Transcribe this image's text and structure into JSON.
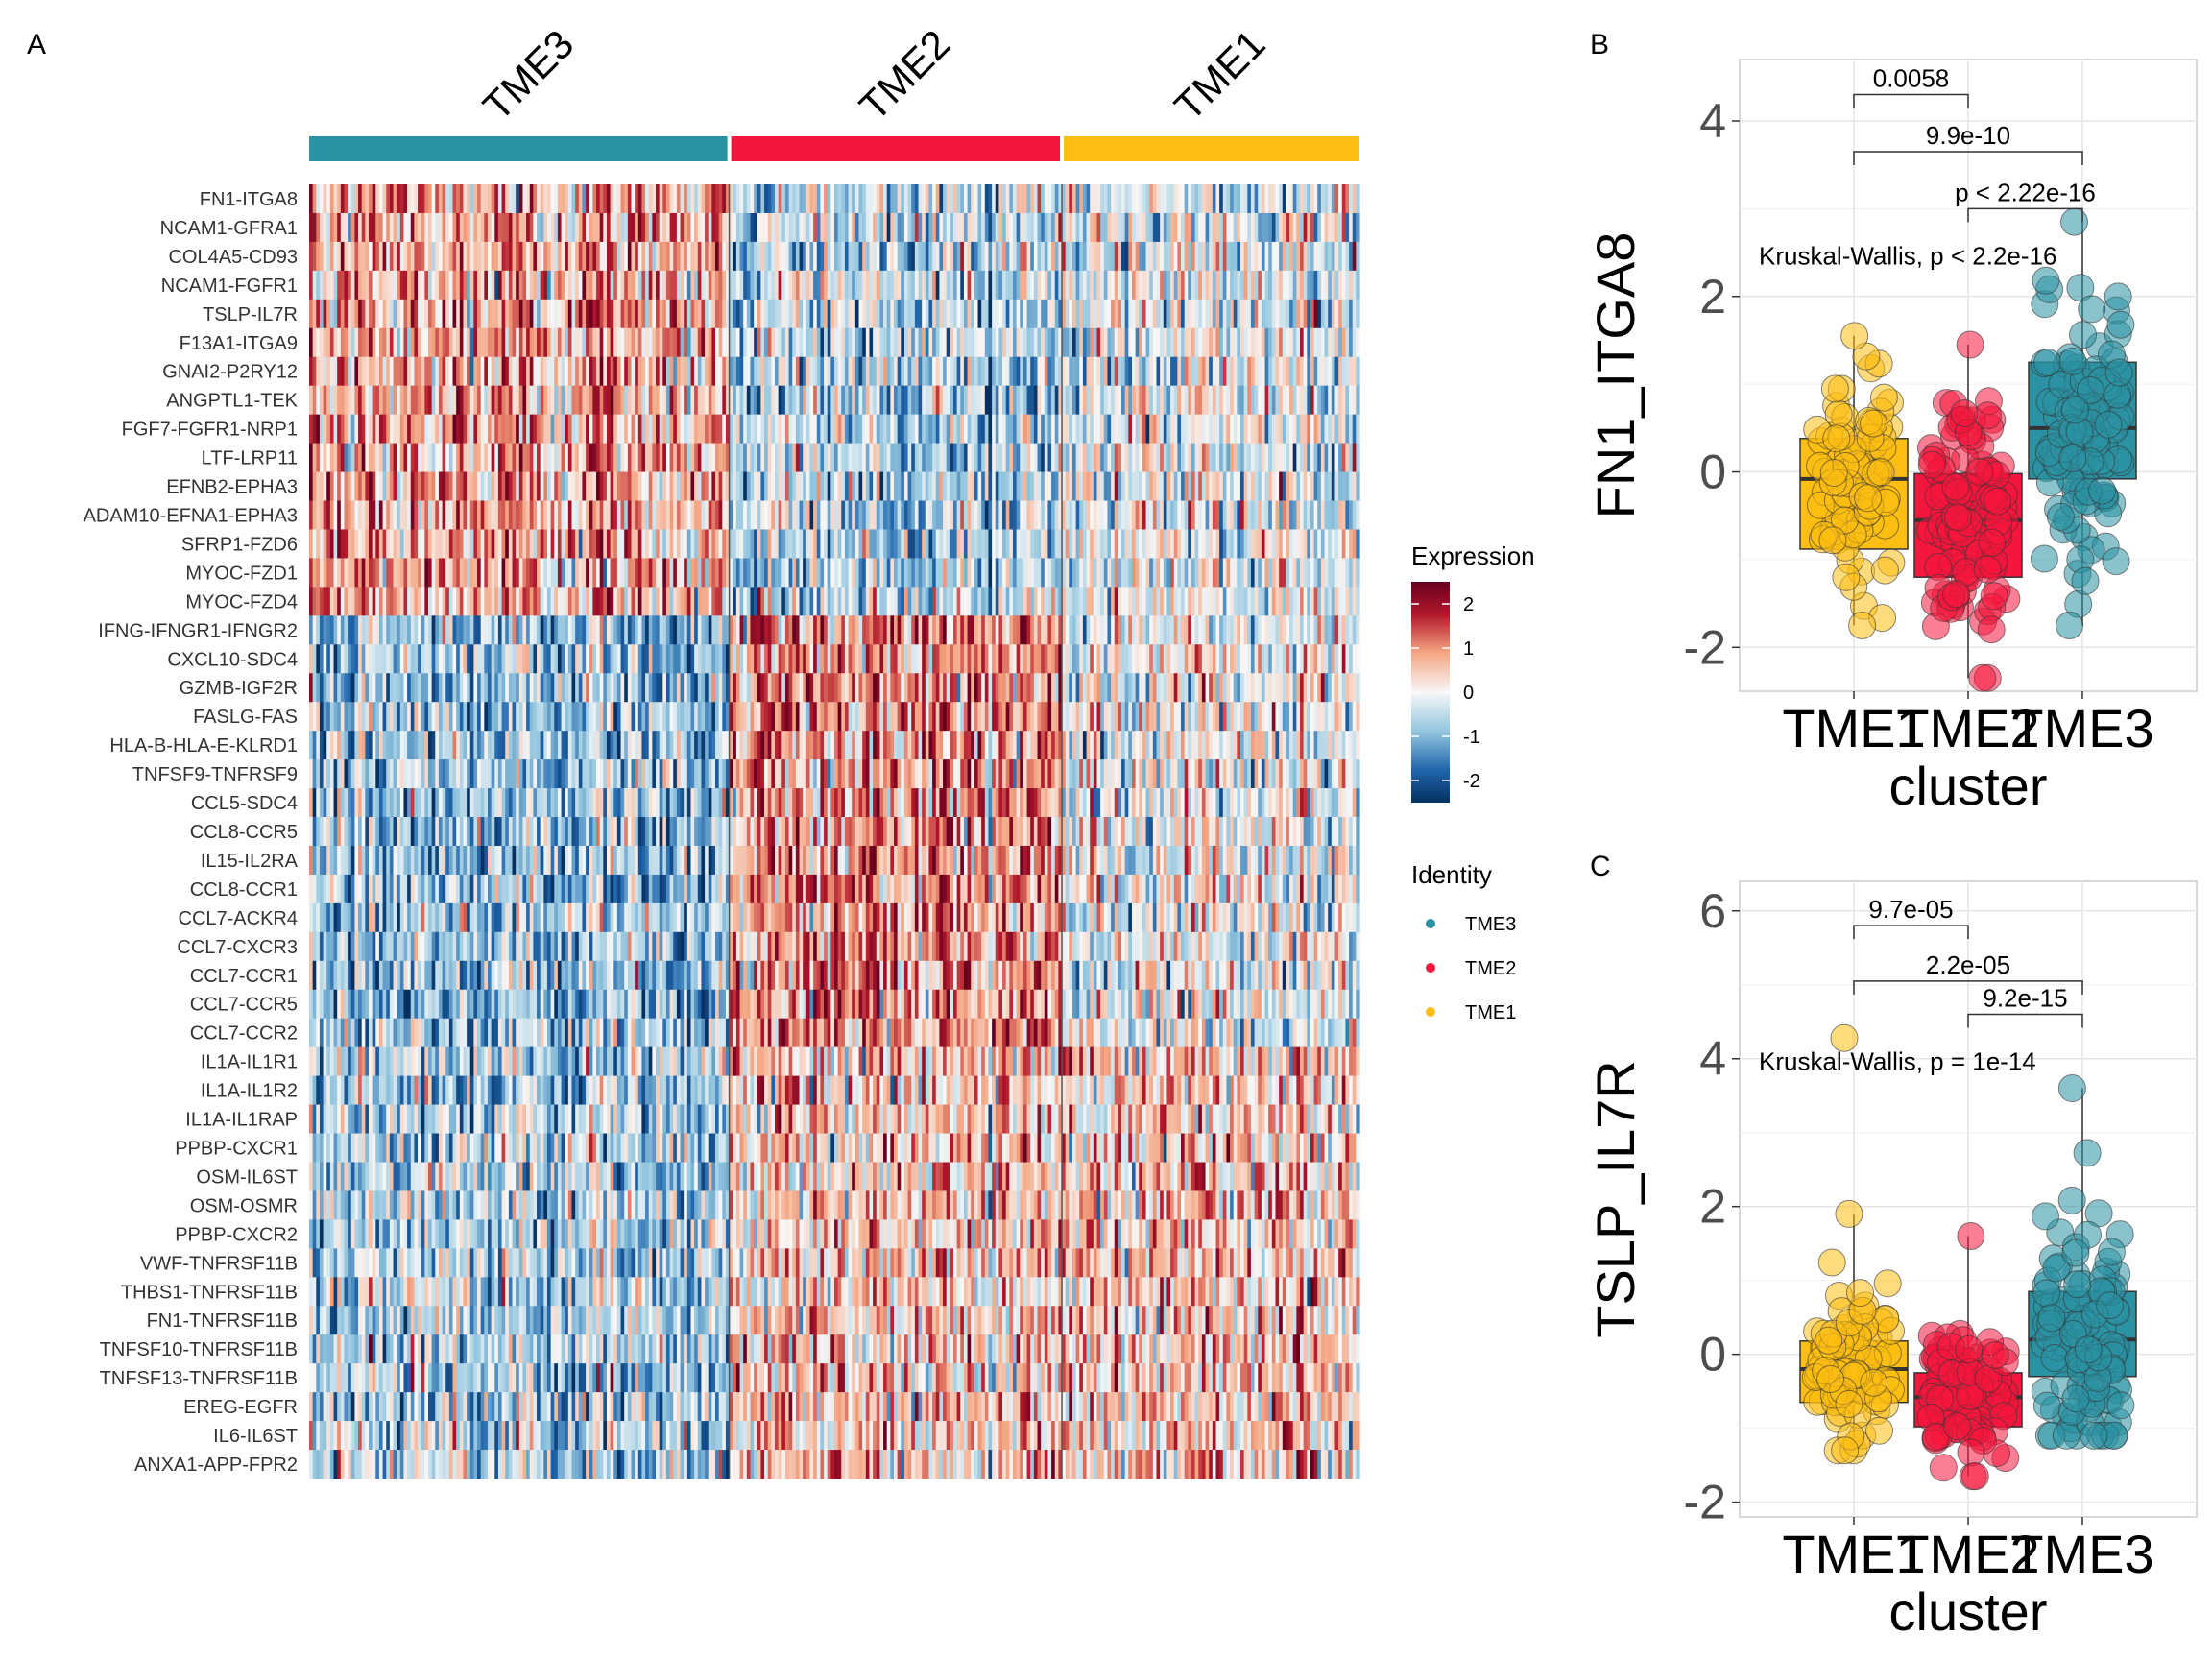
{
  "panels": {
    "a": "A",
    "b": "B",
    "c": "C"
  },
  "colors": {
    "TME3": "#2A92A2",
    "TME2": "#F5163D",
    "TME1": "#FDBE13",
    "heat_low": "#053061",
    "heat_mid": "#F7F7F7",
    "heat_high": "#67001F"
  },
  "chart_data": [
    {
      "type": "heatmap",
      "panel": "A",
      "columns": [
        {
          "name": "TME3",
          "cells": 120
        },
        {
          "name": "TME2",
          "cells": 95
        },
        {
          "name": "TME1",
          "cells": 85
        }
      ],
      "rows": [
        {
          "name": "FN1-ITGA8",
          "group": 1
        },
        {
          "name": "NCAM1-GFRA1",
          "group": 1
        },
        {
          "name": "COL4A5-CD93",
          "group": 1
        },
        {
          "name": "NCAM1-FGFR1",
          "group": 1
        },
        {
          "name": "TSLP-IL7R",
          "group": 1
        },
        {
          "name": "F13A1-ITGA9",
          "group": 1
        },
        {
          "name": "GNAI2-P2RY12",
          "group": 1
        },
        {
          "name": "ANGPTL1-TEK",
          "group": 1
        },
        {
          "name": "FGF7-FGFR1-NRP1",
          "group": 1
        },
        {
          "name": "LTF-LRP11",
          "group": 1
        },
        {
          "name": "EFNB2-EPHA3",
          "group": 1
        },
        {
          "name": "ADAM10-EFNA1-EPHA3",
          "group": 1
        },
        {
          "name": "SFRP1-FZD6",
          "group": 1
        },
        {
          "name": "MYOC-FZD1",
          "group": 1
        },
        {
          "name": "MYOC-FZD4",
          "group": 1
        },
        {
          "name": "IFNG-IFNGR1-IFNGR2",
          "group": 2
        },
        {
          "name": "CXCL10-SDC4",
          "group": 2
        },
        {
          "name": "GZMB-IGF2R",
          "group": 2
        },
        {
          "name": "FASLG-FAS",
          "group": 2
        },
        {
          "name": "HLA-B-HLA-E-KLRD1",
          "group": 2
        },
        {
          "name": "TNFSF9-TNFRSF9",
          "group": 2
        },
        {
          "name": "CCL5-SDC4",
          "group": 2
        },
        {
          "name": "CCL8-CCR5",
          "group": 2
        },
        {
          "name": "IL15-IL2RA",
          "group": 2
        },
        {
          "name": "CCL8-CCR1",
          "group": 2
        },
        {
          "name": "CCL7-ACKR4",
          "group": 2
        },
        {
          "name": "CCL7-CXCR3",
          "group": 2
        },
        {
          "name": "CCL7-CCR1",
          "group": 2
        },
        {
          "name": "CCL7-CCR5",
          "group": 2
        },
        {
          "name": "CCL7-CCR2",
          "group": 2
        },
        {
          "name": "IL1A-IL1R1",
          "group": 3
        },
        {
          "name": "IL1A-IL1R2",
          "group": 3
        },
        {
          "name": "IL1A-IL1RAP",
          "group": 3
        },
        {
          "name": "PPBP-CXCR1",
          "group": 3
        },
        {
          "name": "OSM-IL6ST",
          "group": 3
        },
        {
          "name": "OSM-OSMR",
          "group": 3
        },
        {
          "name": "PPBP-CXCR2",
          "group": 3
        },
        {
          "name": "VWF-TNFRSF11B",
          "group": 3
        },
        {
          "name": "THBS1-TNFRSF11B",
          "group": 3
        },
        {
          "name": "FN1-TNFRSF11B",
          "group": 3
        },
        {
          "name": "TNFSF10-TNFRSF11B",
          "group": 3
        },
        {
          "name": "TNFSF13-TNFRSF11B",
          "group": 3
        },
        {
          "name": "EREG-EGFR",
          "group": 3
        },
        {
          "name": "IL6-IL6ST",
          "group": 3
        },
        {
          "name": "ANXA1-APP-FPR2",
          "group": 3
        }
      ],
      "group_means": {
        "1": {
          "TME3": 0.8,
          "TME2": -0.55,
          "TME1": -0.2
        },
        "2": {
          "TME3": -0.8,
          "TME2": 0.95,
          "TME1": -0.1
        },
        "3": {
          "TME3": -0.6,
          "TME2": 0.45,
          "TME1": 0.5
        }
      },
      "legend_expression": {
        "title": "Expression",
        "ticks": [
          "2",
          "1",
          "0",
          "-1",
          "-2"
        ],
        "range": [
          -2.5,
          2.5
        ]
      },
      "legend_identity": {
        "title": "Identity",
        "items": [
          "TME3",
          "TME2",
          "TME1"
        ]
      }
    },
    {
      "type": "box",
      "panel": "B",
      "ylabel": "FN1_ITGA8",
      "xlabel": "cluster",
      "categories": [
        "TME1",
        "TME2",
        "TME3"
      ],
      "ylim": [
        -2.5,
        4.7
      ],
      "yticks": [
        -2,
        0,
        2,
        4
      ],
      "boxes": [
        {
          "group": "TME1",
          "q1": -0.88,
          "median": -0.08,
          "q3": 0.38,
          "whisker_low": -1.75,
          "whisker_high": 1.55,
          "n": 90,
          "sd": 0.6
        },
        {
          "group": "TME2",
          "q1": -1.2,
          "median": -0.55,
          "q3": -0.02,
          "whisker_low": -2.35,
          "whisker_high": 1.45,
          "n": 110,
          "sd": 0.6
        },
        {
          "group": "TME3",
          "q1": -0.08,
          "median": 0.5,
          "q3": 1.25,
          "whisker_low": -1.75,
          "whisker_high": 2.85,
          "n": 120,
          "sd": 0.8
        }
      ],
      "comparisons": [
        {
          "from": "TME1",
          "to": "TME2",
          "label": "0.0058",
          "y": 4.3
        },
        {
          "from": "TME1",
          "to": "TME3",
          "label": "9.9e-10",
          "y": 3.65
        },
        {
          "from": "TME2",
          "to": "TME3",
          "label": "p < 2.22e-16",
          "y": 3.0
        }
      ],
      "kruskal": "Kruskal-Wallis, p < 2.2e-16"
    },
    {
      "type": "box",
      "panel": "C",
      "ylabel": "TSLP_IL7R",
      "xlabel": "cluster",
      "categories": [
        "TME1",
        "TME2",
        "TME3"
      ],
      "ylim": [
        -2.2,
        6.4
      ],
      "yticks": [
        -2,
        0,
        2,
        4,
        6
      ],
      "boxes": [
        {
          "group": "TME1",
          "q1": -0.65,
          "median": -0.2,
          "q3": 0.18,
          "whisker_low": -1.3,
          "whisker_high": 1.9,
          "n": 90,
          "sd": 0.5
        },
        {
          "group": "TME2",
          "q1": -0.98,
          "median": -0.58,
          "q3": -0.25,
          "whisker_low": -1.65,
          "whisker_high": 1.6,
          "n": 100,
          "sd": 0.45
        },
        {
          "group": "TME3",
          "q1": -0.3,
          "median": 0.2,
          "q3": 0.85,
          "whisker_low": -1.1,
          "whisker_high": 3.6,
          "n": 120,
          "sd": 0.9
        }
      ],
      "outliers": [
        {
          "group": "TME1",
          "y": 4.28
        }
      ],
      "comparisons": [
        {
          "from": "TME1",
          "to": "TME2",
          "label": "9.7e-05",
          "y": 5.8
        },
        {
          "from": "TME1",
          "to": "TME3",
          "label": "2.2e-05",
          "y": 5.05
        },
        {
          "from": "TME2",
          "to": "TME3",
          "label": "9.2e-15",
          "y": 4.6
        }
      ],
      "kruskal": "Kruskal-Wallis, p = 1e-14"
    }
  ]
}
